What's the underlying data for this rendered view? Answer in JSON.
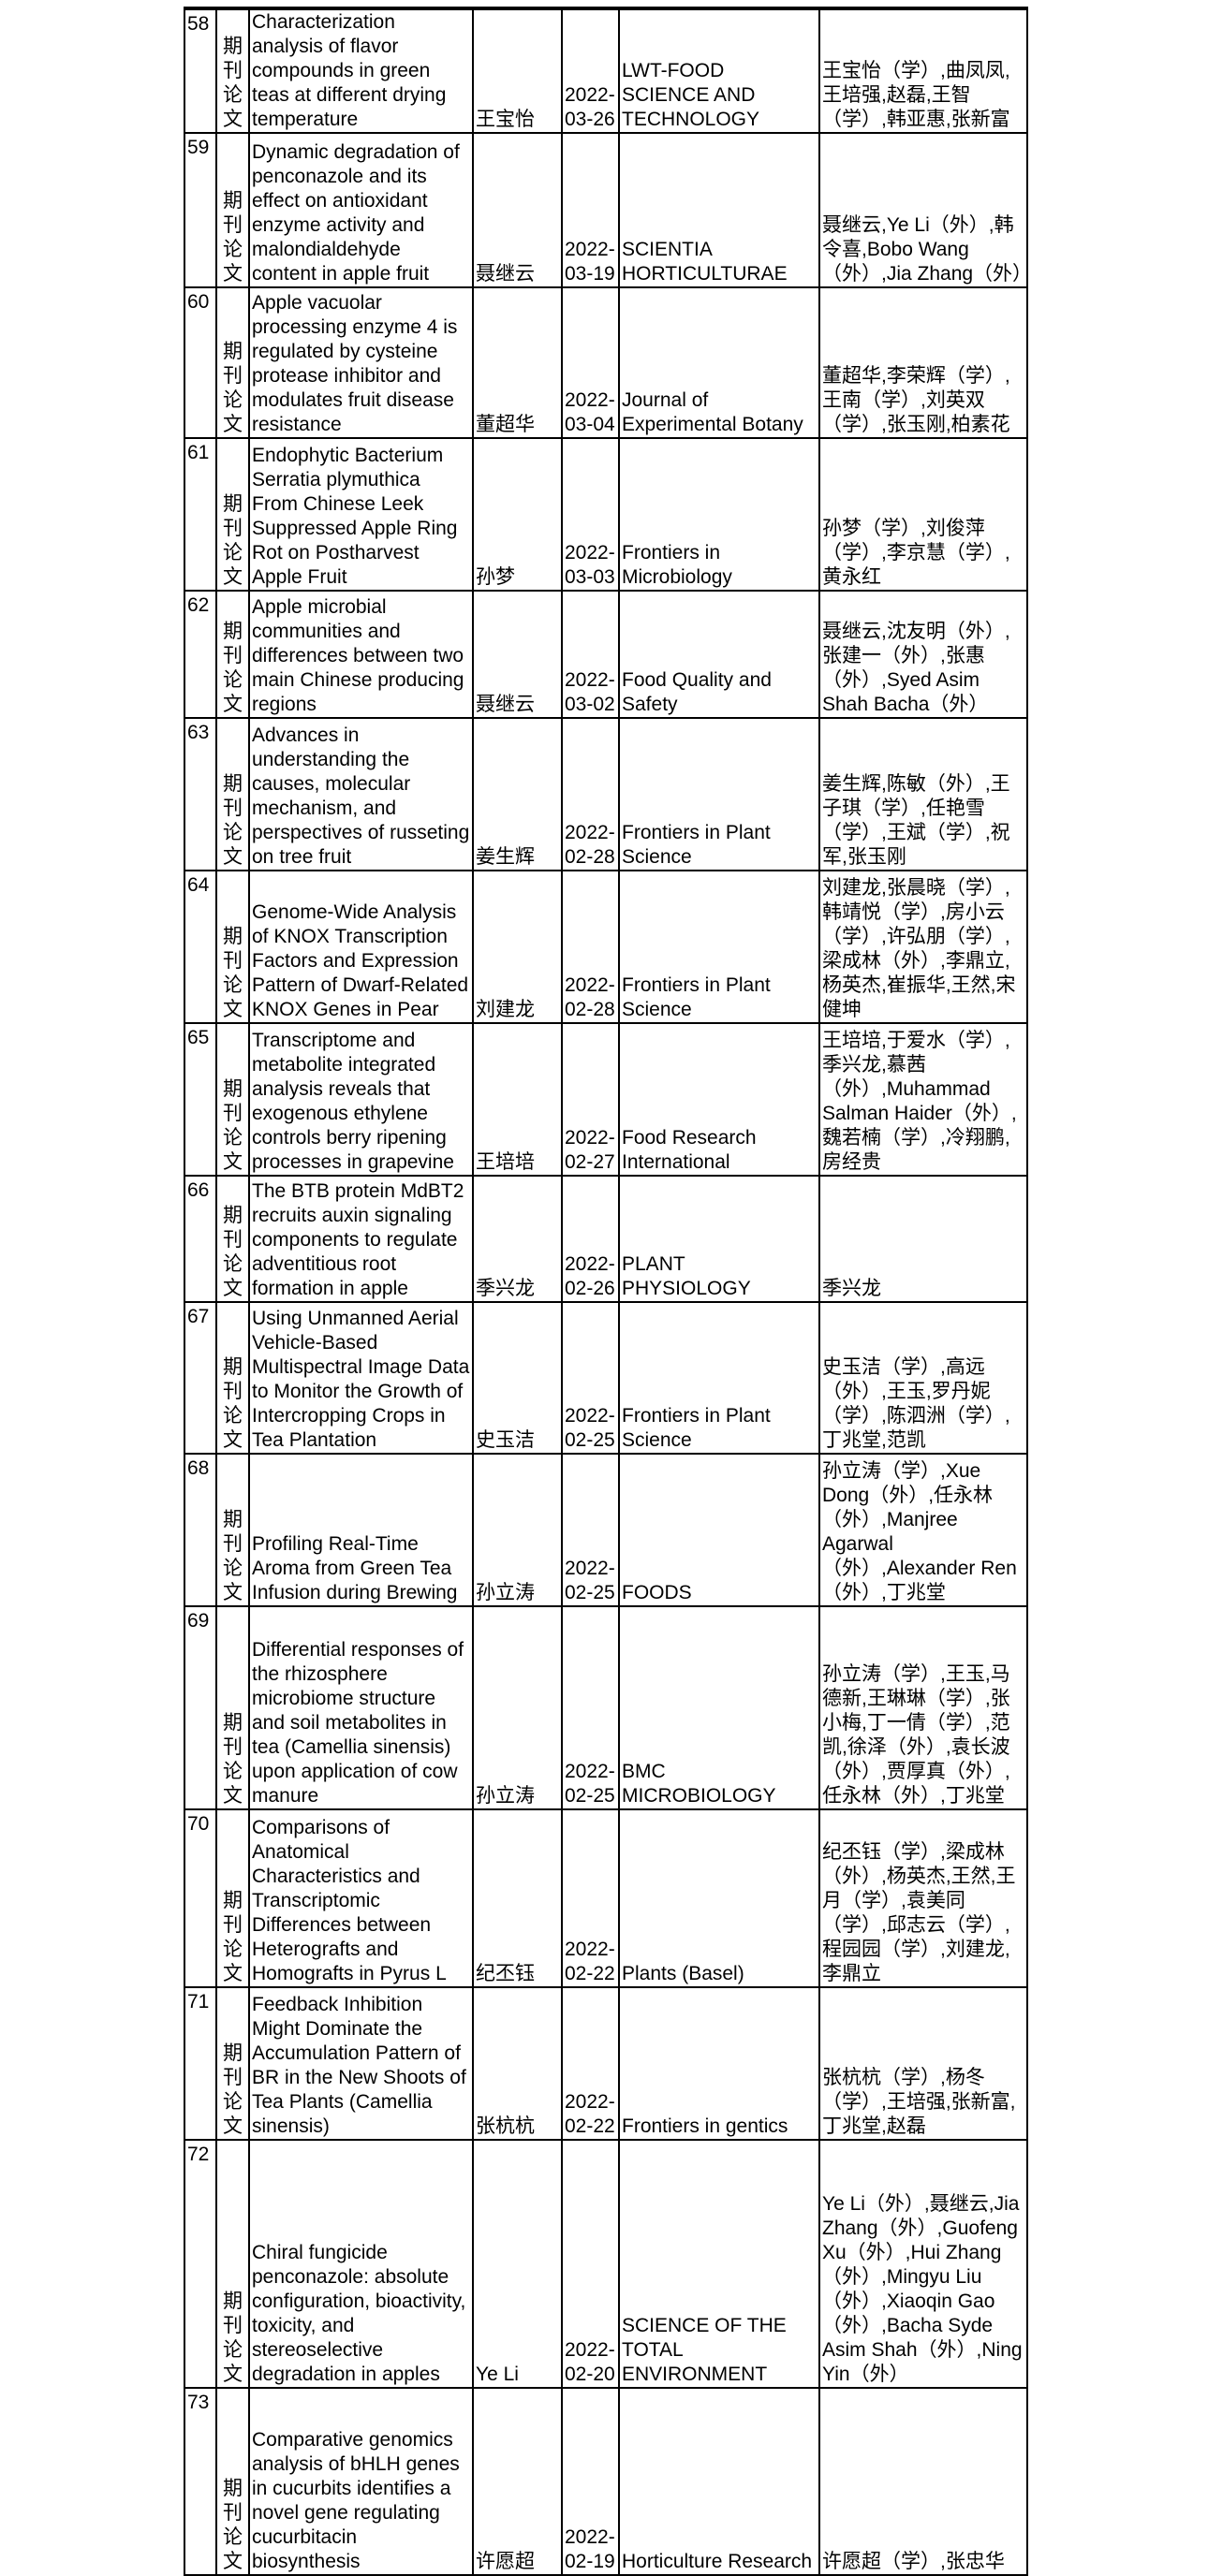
{
  "table": {
    "rows": [
      [
        58,
        "期刊论文",
        "Characterization analysis of flavor compounds in green teas at different drying temperature",
        "王宝怡",
        "2022-03-26",
        "LWT-FOOD SCIENCE AND TECHNOLOGY",
        "王宝怡（学）,曲凤凤,王培强,赵磊,王智（学）,韩亚惠,张新富"
      ],
      [
        59,
        "期刊论文",
        "Dynamic degradation of penconazole and its effect on antioxidant enzyme activity and malondialdehyde content in apple fruit",
        "聂继云",
        "2022-03-19",
        "SCIENTIA HORTICULTURAE",
        "聂继云,Ye Li（外）,韩令喜,Bobo Wang（外）,Jia Zhang（外）"
      ],
      [
        60,
        "期刊论文",
        "Apple vacuolar processing enzyme 4 is regulated by cysteine protease inhibitor and modulates fruit disease resistance",
        "董超华",
        "2022-03-04",
        "Journal of Experimental Botany",
        "董超华,李荣辉（学）,王南（学）,刘英双（学）,张玉刚,柏素花"
      ],
      [
        61,
        "期刊论文",
        "Endophytic Bacterium Serratia plymuthica From Chinese Leek Suppressed Apple Ring Rot on Postharvest Apple Fruit",
        "孙梦",
        "2022-03-03",
        "Frontiers in Microbiology",
        "孙梦（学）,刘俊萍（学）,李京慧（学）,黄永红"
      ],
      [
        62,
        "期刊论文",
        "Apple microbial communities and differences between two main Chinese producing regions",
        "聂继云",
        "2022-03-02",
        "Food Quality and Safety",
        "聂继云,沈友明（外）,张建一（外）,张惠（外）,Syed Asim Shah Bacha（外）"
      ],
      [
        63,
        "期刊论文",
        "Advances in understanding the causes, molecular mechanism, and perspectives of russeting on tree fruit",
        "姜生辉",
        "2022-02-28",
        "Frontiers in Plant Science",
        "姜生辉,陈敏（外）,王子琪（学）,任艳雪（学）,王斌（学）,祝军,张玉刚"
      ],
      [
        64,
        "期刊论文",
        "Genome-Wide Analysis of KNOX Transcription Factors and Expression Pattern of Dwarf-Related KNOX Genes in Pear",
        "刘建龙",
        "2022-02-28",
        "Frontiers in Plant Science",
        "刘建龙,张晨晓（学）,韩靖悦（学）,房小云（学）,许弘朋（学）,梁成林（外）,李鼎立,杨英杰,崔振华,王然,宋健坤"
      ],
      [
        65,
        "期刊论文",
        "Transcriptome and metabolite integrated analysis reveals that exogenous ethylene controls berry ripening processes in grapevine",
        "王培培",
        "2022-02-27",
        "Food Research International",
        "王培培,于爱水（学）,季兴龙,慕茜（外）,Muhammad Salman Haider（外）,魏若楠（学）,冷翔鹏,房经贵"
      ],
      [
        66,
        "期刊论文",
        "The BTB protein MdBT2 recruits auxin signaling components to regulate adventitious root formation in apple",
        "季兴龙",
        "2022-02-26",
        "PLANT PHYSIOLOGY",
        "季兴龙"
      ],
      [
        67,
        "期刊论文",
        "Using Unmanned Aerial Vehicle-Based Multispectral Image Data to Monitor the Growth of Intercropping Crops in Tea Plantation",
        "史玉洁",
        "2022-02-25",
        "Frontiers in Plant Science",
        "史玉洁（学）,高远（外）,王玉,罗丹妮（学）,陈泗洲（学）,丁兆堂,范凯"
      ],
      [
        68,
        "期刊论文",
        "Profiling Real-Time Aroma from Green Tea Infusion during Brewing",
        "孙立涛",
        "2022-02-25",
        "FOODS",
        "孙立涛（学）,Xue Dong（外）,任永林（外）,Manjree Agarwal（外）,Alexander Ren（外）,丁兆堂"
      ],
      [
        69,
        "期刊论文",
        "Differential responses of the rhizosphere microbiome structure and soil metabolites in tea (Camellia sinensis) upon application of cow manure",
        "孙立涛",
        "2022-02-25",
        "BMC MICROBIOLOGY",
        "孙立涛（学）,王玉,马德新,王琳琳（学）,张小梅,丁一倩（学）,范凯,徐泽（外）,袁长波（外）,贾厚真（外）,任永林（外）,丁兆堂"
      ],
      [
        70,
        "期刊论文",
        "Comparisons of Anatomical Characteristics and Transcriptomic Differences between Heterografts and Homografts in Pyrus L",
        "纪丕钰",
        "2022-02-22",
        "Plants (Basel)",
        "纪丕钰（学）,梁成林（外）,杨英杰,王然,王月（学）,袁美同（学）,邱志云（学）,程园园（学）,刘建龙,李鼎立"
      ],
      [
        71,
        "期刊论文",
        "Feedback Inhibition Might Dominate the Accumulation Pattern of BR in the New Shoots of Tea Plants (Camellia sinensis)",
        "张杭杭",
        "2022-02-22",
        "Frontiers in gentics",
        "张杭杭（学）,杨冬（学）,王培强,张新富,丁兆堂,赵磊"
      ],
      [
        72,
        "期刊论文",
        "Chiral fungicide penconazole: absolute configuration, bioactivity, toxicity, and stereoselective degradation in apples",
        "Ye Li",
        "2022-02-20",
        "SCIENCE OF THE TOTAL ENVIRONMENT",
        "Ye Li（外）,聂继云,Jia Zhang（外）,Guofeng Xu（外）,Hui Zhang（外）,Mingyu Liu（外）,Xiaoqin Gao（外）,Bacha Syde Asim Shah（外）,Ning Yin（外）"
      ],
      [
        73,
        "期刊论文",
        "Comparative genomics analysis of bHLH genes in cucurbits identifies a novel gene regulating cucurbitacin biosynthesis",
        "许愿超",
        "2022-02-19",
        "Horticulture Research",
        "许愿超（学）,张忠华"
      ]
    ]
  }
}
